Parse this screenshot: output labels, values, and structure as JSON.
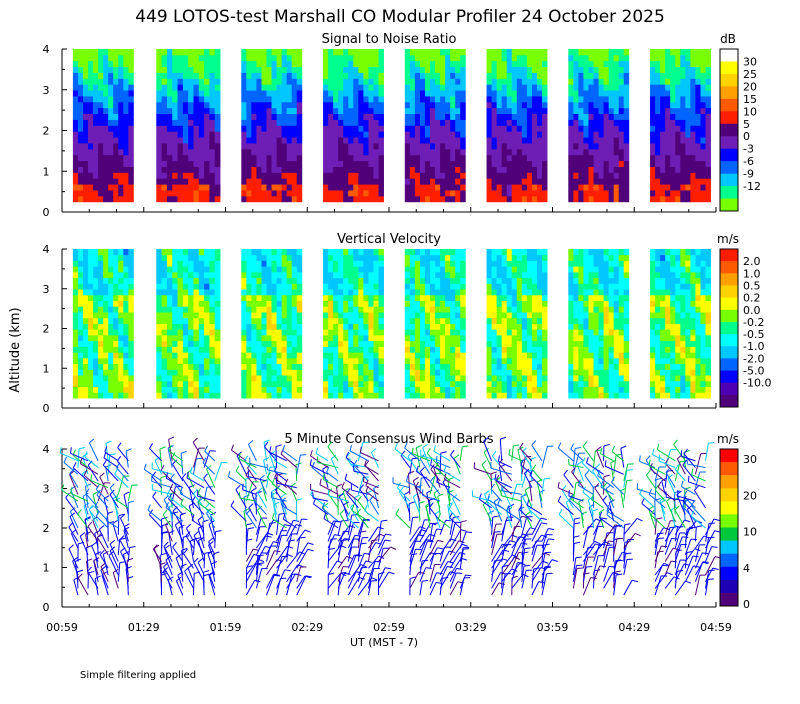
{
  "title": "449 LOTOS-test Marshall CO Modular Profiler 24 October 2025",
  "ylabel": "Altitude (km)",
  "xlabel": "UT  (MST - 7)",
  "footnote": "Simple filtering applied",
  "x_ticks": [
    "00:59",
    "01:29",
    "01:59",
    "02:29",
    "02:59",
    "03:29",
    "03:59",
    "04:29",
    "04:59"
  ],
  "y_ticks": [
    "0",
    "1",
    "2",
    "3",
    "4"
  ],
  "chart_data": [
    {
      "type": "heatmap",
      "title": "Signal to Noise Ratio",
      "unit": "dB",
      "ylim": [
        0,
        4
      ],
      "xlim": [
        "00:59",
        "04:59"
      ],
      "colorbar_labels": [
        "30",
        "25",
        "20",
        "15",
        "10",
        "5",
        "0",
        "-3",
        "-6",
        "-9",
        "-12"
      ],
      "colorbar_colors": [
        "#ffffff",
        "#ffff00",
        "#ffd200",
        "#ffa000",
        "#ff5a00",
        "#ff1e00",
        "#500078",
        "#6e1eb4",
        "#0000ff",
        "#0064ff",
        "#00c8ff",
        "#00ff8c",
        "#78ff00"
      ],
      "data_blocks_hours": [
        [
          1.05,
          1.42
        ],
        [
          1.56,
          1.95
        ],
        [
          2.08,
          2.45
        ],
        [
          2.58,
          2.95
        ],
        [
          3.08,
          3.45
        ],
        [
          3.58,
          3.95
        ],
        [
          4.08,
          4.45
        ],
        [
          4.58,
          4.95
        ]
      ],
      "data_altitude_km": [
        0.25,
        4.0
      ]
    },
    {
      "type": "heatmap",
      "title": "Vertical Velocity",
      "unit": "m/s",
      "ylim": [
        0,
        4
      ],
      "xlim": [
        "00:59",
        "04:59"
      ],
      "colorbar_labels": [
        "2.0",
        "1.0",
        "0.5",
        "0.2",
        "0.0",
        "-0.2",
        "-0.5",
        "-1.0",
        "-2.0",
        "-5.0",
        "-10.0"
      ],
      "colorbar_colors": [
        "#ff1e00",
        "#ff5a00",
        "#ffa000",
        "#ffd200",
        "#ffff00",
        "#78ff00",
        "#00ff8c",
        "#00ffff",
        "#00c8ff",
        "#0064ff",
        "#0000ff",
        "#5000b4",
        "#500078"
      ],
      "data_blocks_hours": [
        [
          1.05,
          1.42
        ],
        [
          1.56,
          1.95
        ],
        [
          2.08,
          2.45
        ],
        [
          2.58,
          2.95
        ],
        [
          3.08,
          3.45
        ],
        [
          3.58,
          3.95
        ],
        [
          4.08,
          4.45
        ],
        [
          4.58,
          4.95
        ]
      ],
      "data_altitude_km": [
        0.25,
        4.0
      ]
    },
    {
      "type": "scatter",
      "title": "5 Minute Consensus Wind Barbs",
      "unit": "m/s",
      "ylim": [
        0,
        4
      ],
      "xlim": [
        "00:59",
        "04:59"
      ],
      "colorbar_labels": [
        "30",
        "20",
        "10",
        "4",
        "0"
      ],
      "colorbar_colors": [
        "#ff0000",
        "#ff5a00",
        "#ffa000",
        "#ffd200",
        "#ffff00",
        "#78ff00",
        "#00c83c",
        "#00c8ff",
        "#0064ff",
        "#0000ff",
        "#1e00b4",
        "#500078"
      ]
    }
  ]
}
